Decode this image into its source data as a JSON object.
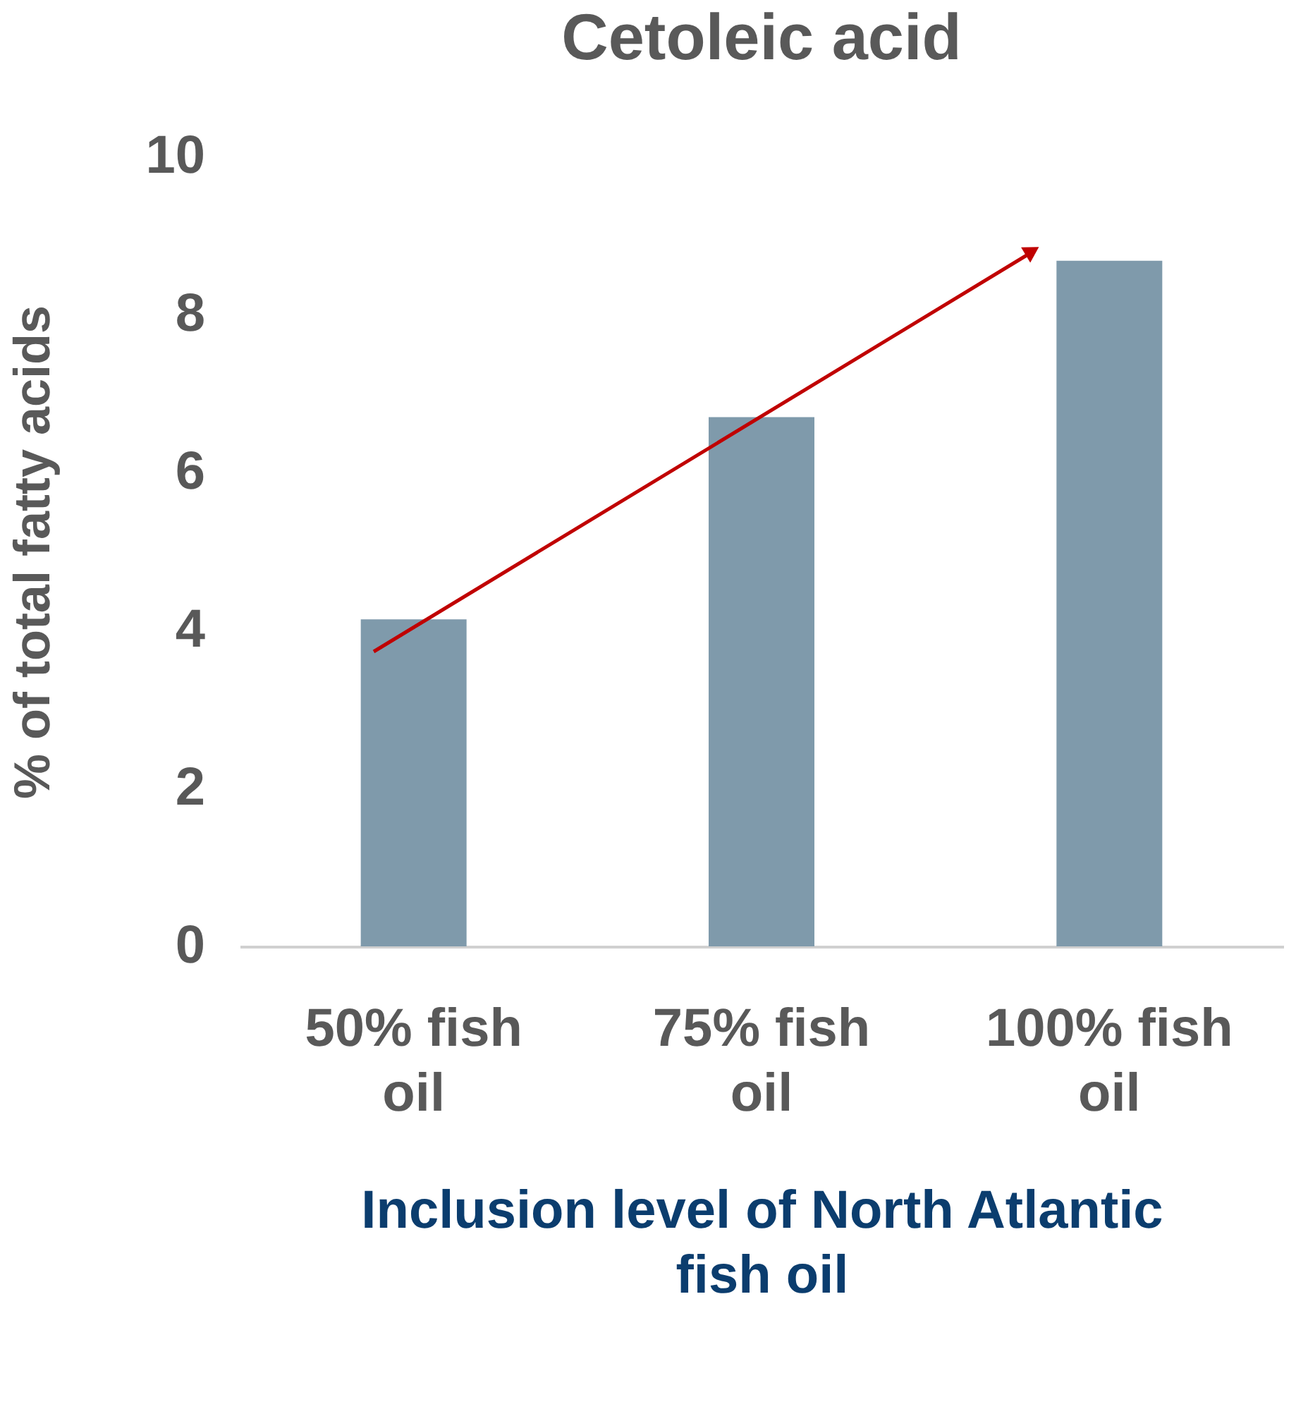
{
  "chart_data": {
    "type": "bar",
    "title": "Cetoleic acid",
    "xlabel": "Inclusion level of North Atlantic fish oil",
    "ylabel": "% of total fatty acids",
    "categories": [
      "50% fish oil",
      "75% fish oil",
      "100% fish oil"
    ],
    "values": [
      4.14,
      6.7,
      8.68
    ],
    "color": "#7f9aab",
    "ylim": [
      0,
      10
    ],
    "yticks": [
      0,
      2,
      4,
      6,
      8,
      10
    ],
    "grid": false
  }
}
